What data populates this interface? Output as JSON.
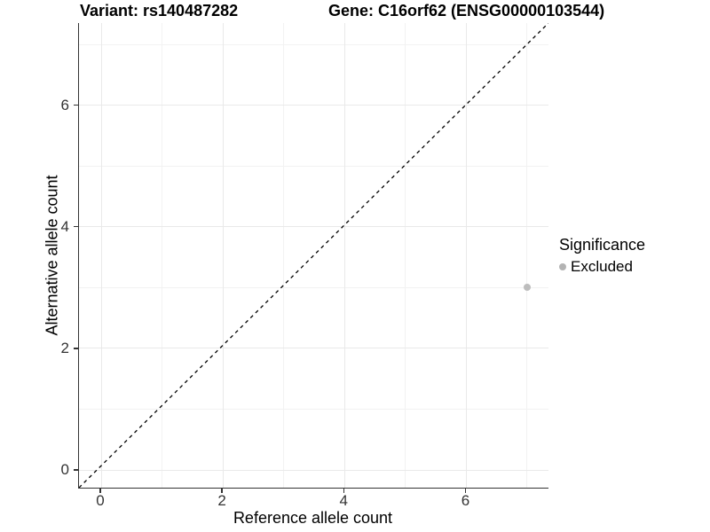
{
  "figure": {
    "title_left": "Variant: rs140487282",
    "title_right": "Gene: C16orf62 (ENSG00000103544)"
  },
  "chart_data": {
    "type": "scatter",
    "title": "Variant: rs140487282   Gene: C16orf62 (ENSG00000103544)",
    "xlabel": "Reference allele count",
    "ylabel": "Alternative allele count",
    "xlim": [
      -0.35,
      7.35
    ],
    "ylim": [
      -0.3,
      7.35
    ],
    "xticks": [
      0,
      2,
      4,
      6
    ],
    "yticks": [
      0,
      2,
      4,
      6
    ],
    "grid": {
      "major": [
        0,
        2,
        4,
        6
      ],
      "minor": [
        1,
        3,
        5,
        7
      ],
      "on": true
    },
    "series": [
      {
        "name": "Excluded",
        "color": "#bdbdbd",
        "points": [
          {
            "x": 7,
            "y": 3
          }
        ]
      }
    ],
    "reference_line": {
      "kind": "identity y=x",
      "style": "dashed",
      "color": "#000000",
      "from": [
        -0.3,
        -0.3
      ],
      "to": [
        7.35,
        7.35
      ]
    },
    "legend": {
      "title": "Significance",
      "position": "right",
      "entries": [
        {
          "label": "Excluded",
          "color": "#b3b3b3"
        }
      ]
    }
  },
  "colors": {
    "axis_line": "#333333",
    "grid_major": "#e9e9e9",
    "grid_minor": "#f2f2f2",
    "tick_text": "#333333",
    "background": "#ffffff"
  }
}
